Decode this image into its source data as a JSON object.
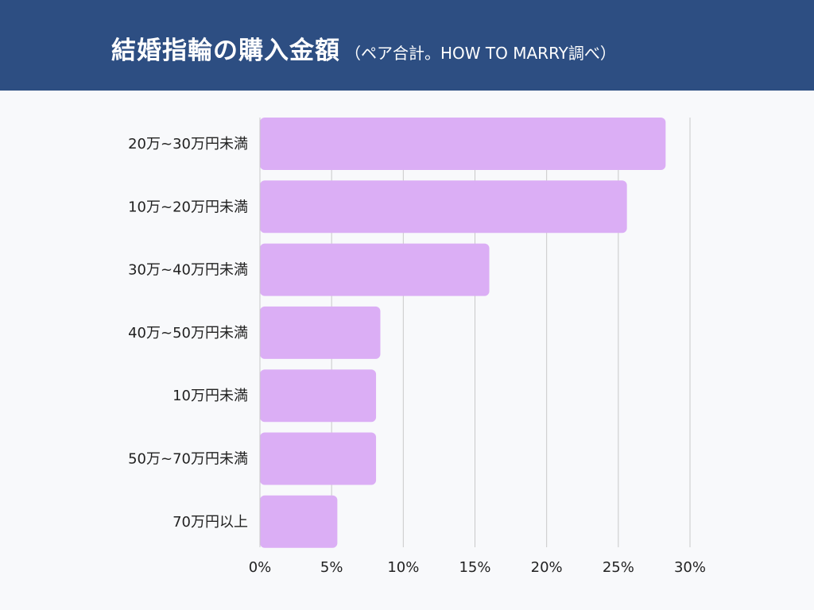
{
  "header": {
    "title": "結婚指輪の購入金額",
    "subtitle": "（ペア合計。HOW TO MARRY調べ）",
    "background_color": "#2d4e82"
  },
  "chart_data": {
    "type": "bar",
    "orientation": "horizontal",
    "title": "結婚指輪の購入金額",
    "subtitle": "（ペア合計。HOW TO MARRY調べ）",
    "categories": [
      "20万~30万円未満",
      "10万~20万円未満",
      "30万~40万円未満",
      "40万~50万円未満",
      "10万円未満",
      "50万~70万円未満",
      "70万円以上"
    ],
    "values": [
      28.3,
      25.6,
      16.0,
      8.4,
      8.1,
      8.1,
      5.4
    ],
    "unit": "%",
    "xlim": [
      0,
      30
    ],
    "x_ticks": [
      "0%",
      "5%",
      "10%",
      "15%",
      "20%",
      "25%",
      "30%"
    ],
    "grid": true,
    "legend": "none",
    "bar_color": "#dbaef5"
  }
}
